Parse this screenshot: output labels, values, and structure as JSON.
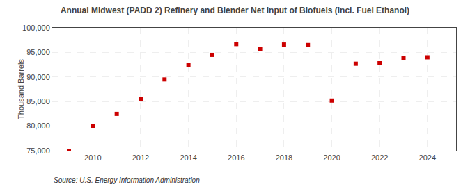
{
  "chart_data": {
    "type": "scatter",
    "title": "Annual Midwest (PADD 2) Refinery and Blender Net Input of Biofuels (incl. Fuel Ethanol)",
    "ylabel": "Thousand Barrels",
    "annotation": "Source: U.S. Energy Information Administration",
    "x": [
      2009,
      2010,
      2011,
      2012,
      2013,
      2014,
      2015,
      2016,
      2017,
      2018,
      2019,
      2020,
      2021,
      2022,
      2023,
      2024
    ],
    "values": [
      75000,
      80000,
      82500,
      85500,
      89500,
      92500,
      94500,
      96700,
      95700,
      96600,
      96500,
      85200,
      92700,
      92800,
      93800,
      94000
    ],
    "color": "#cc0000",
    "marker": "square",
    "xlim": [
      2008.3,
      2025.2
    ],
    "xticks": [
      2010,
      2012,
      2014,
      2016,
      2018,
      2020,
      2022,
      2024
    ],
    "ylim": [
      75000,
      100000
    ],
    "yticks": [
      {
        "value": 75000,
        "label": "75,000"
      },
      {
        "value": 80000,
        "label": "80,000"
      },
      {
        "value": 85000,
        "label": "85,000"
      },
      {
        "value": 90000,
        "label": "90,000"
      },
      {
        "value": 95000,
        "label": "95,000"
      },
      {
        "value": 100000,
        "label": "100,000"
      }
    ],
    "grid": true
  }
}
